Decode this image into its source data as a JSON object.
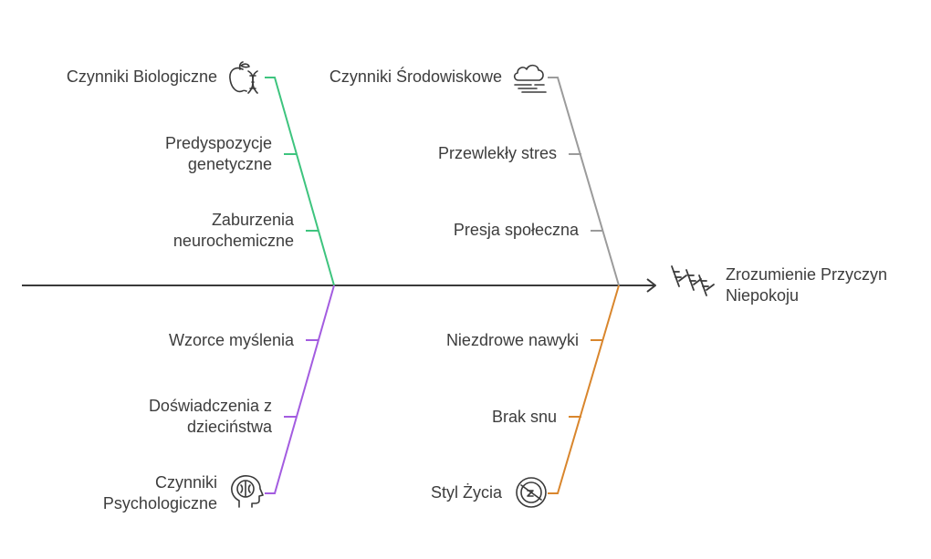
{
  "colors": {
    "spine": "#3a3a3a",
    "biological": "#3ec47e",
    "environmental": "#9b9b9b",
    "psychological": "#a35ce0",
    "lifestyle": "#d9862d",
    "icon": "#3a3a3a"
  },
  "effect": {
    "line1": "Zrozumienie Przyczyn",
    "line2": "Niepokoju",
    "icon": "fishbone-icon"
  },
  "categories": {
    "biological": {
      "title": "Czynniki Biologiczne",
      "icon": "dna-apple-icon",
      "causes": [
        [
          "Predyspozycje",
          "genetyczne"
        ],
        [
          "Zaburzenia",
          "neurochemiczne"
        ]
      ]
    },
    "environmental": {
      "title": "Czynniki Środowiskowe",
      "icon": "cloud-wind-icon",
      "causes": [
        [
          "Przewlekły stres"
        ],
        [
          "Presja społeczna"
        ]
      ]
    },
    "psychological": {
      "title1": "Czynniki",
      "title2": "Psychologiczne",
      "icon": "head-brain-icon",
      "causes": [
        [
          "Wzorce myślenia"
        ],
        [
          "Doświadczenia z",
          "dzieciństwa"
        ]
      ]
    },
    "lifestyle": {
      "title": "Styl Życia",
      "icon": "no-sleep-icon",
      "causes": [
        [
          "Niezdrowe nawyki"
        ],
        [
          "Brak snu"
        ]
      ]
    }
  }
}
